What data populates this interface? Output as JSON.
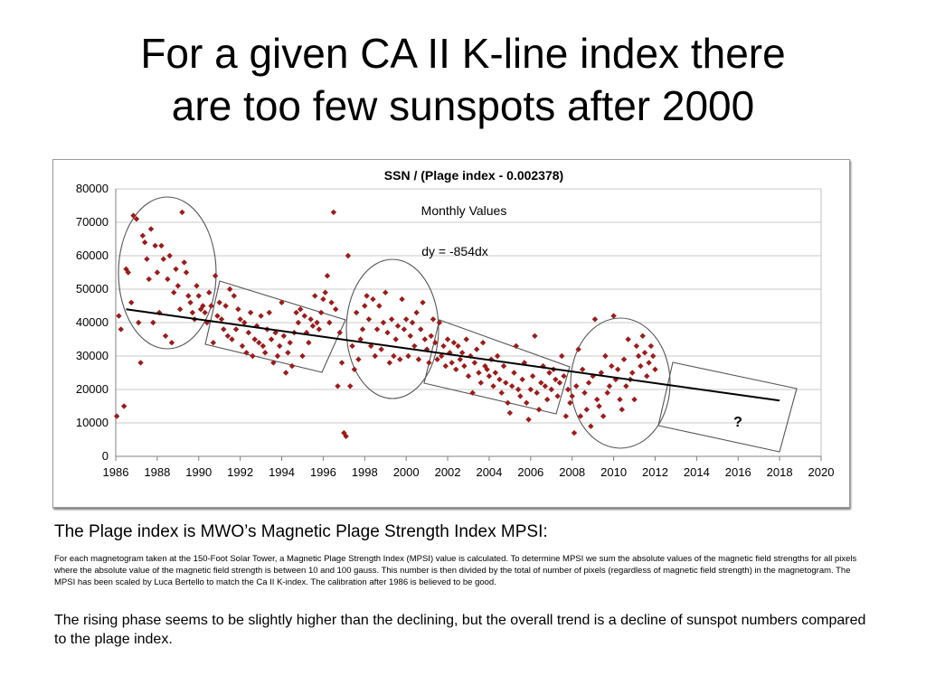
{
  "slide": {
    "title_line1": "For a given CA II K-line index there",
    "title_line2": "are too few sunspots after 2000",
    "caption_head": "The Plage index is MWO’s Magnetic Plage Strength Index MPSI:",
    "caption_small": "For each magnetogram taken at the 150-Foot Solar Tower, a Magnetic Plage Strength Index (MPSI) value is calculated. To determine MPSI we sum the absolute values of the magnetic field strengths for all pixels where the absolute value of the magnetic field strength is between 10 and 100 gauss. This number is then divided by the total of number of pixels (regardless of magnetic field strength) in the magnetogram. The MPSI has been scaled by Luca Bertello to match the Ca II K-index. The calibration after 1986 is believed to be good.",
    "caption_body": "The rising phase seems to be slightly higher than the declining, but the overall trend is a decline of sunspot numbers compared to the plage index."
  },
  "chart_data": {
    "type": "scatter",
    "title": "SSN / (Plage index - 0.002378)",
    "subtitle": "Monthly Values",
    "annotation": "dy = -854dx",
    "question_mark": "?",
    "xlim": [
      1986,
      2020
    ],
    "ylim": [
      0,
      80000
    ],
    "x_ticks": [
      "1986",
      "1988",
      "1990",
      "1992",
      "1994",
      "1996",
      "1998",
      "2000",
      "2002",
      "2004",
      "2006",
      "2008",
      "2010",
      "2012",
      "2014",
      "2016",
      "2018",
      "2020"
    ],
    "y_ticks": [
      "0",
      "10000",
      "20000",
      "30000",
      "40000",
      "50000",
      "60000",
      "70000",
      "80000"
    ],
    "grid": "horizontal",
    "point_color": "#9B1B1B",
    "trend_color": "#000000",
    "trendline": {
      "x": [
        1986.5,
        2018.0
      ],
      "y": [
        44000,
        16700
      ]
    },
    "series": [
      {
        "points": [
          [
            1986.05,
            12000
          ],
          [
            1986.15,
            42000
          ],
          [
            1986.25,
            38000
          ],
          [
            1986.4,
            15000
          ],
          [
            1986.5,
            56000
          ],
          [
            1986.6,
            55000
          ],
          [
            1986.75,
            46000
          ],
          [
            1986.85,
            72000
          ],
          [
            1987.0,
            71000
          ],
          [
            1987.1,
            40000
          ],
          [
            1987.2,
            28000
          ],
          [
            1987.3,
            66000
          ],
          [
            1987.4,
            64000
          ],
          [
            1987.5,
            59000
          ],
          [
            1987.6,
            53000
          ],
          [
            1987.7,
            68000
          ],
          [
            1987.8,
            40000
          ],
          [
            1987.9,
            63000
          ],
          [
            1988.0,
            55000
          ],
          [
            1988.1,
            43000
          ],
          [
            1988.2,
            63000
          ],
          [
            1988.3,
            59000
          ],
          [
            1988.4,
            36000
          ],
          [
            1988.5,
            53000
          ],
          [
            1988.6,
            60000
          ],
          [
            1988.7,
            34000
          ],
          [
            1988.8,
            49000
          ],
          [
            1988.9,
            56000
          ],
          [
            1989.0,
            51000
          ],
          [
            1989.1,
            44000
          ],
          [
            1989.2,
            73000
          ],
          [
            1989.3,
            58000
          ],
          [
            1989.4,
            55000
          ],
          [
            1989.5,
            48000
          ],
          [
            1989.6,
            46000
          ],
          [
            1989.7,
            43000
          ],
          [
            1989.8,
            41000
          ],
          [
            1989.9,
            51000
          ],
          [
            1990.0,
            48000
          ],
          [
            1990.1,
            44000
          ],
          [
            1990.2,
            45000
          ],
          [
            1990.3,
            43000
          ],
          [
            1990.4,
            40000
          ],
          [
            1990.5,
            49000
          ],
          [
            1990.6,
            45000
          ],
          [
            1990.7,
            34000
          ],
          [
            1990.8,
            54000
          ],
          [
            1990.9,
            42000
          ],
          [
            1991.0,
            46000
          ],
          [
            1991.1,
            41000
          ],
          [
            1991.2,
            38000
          ],
          [
            1991.3,
            45000
          ],
          [
            1991.4,
            36000
          ],
          [
            1991.5,
            50000
          ],
          [
            1991.6,
            35000
          ],
          [
            1991.7,
            48000
          ],
          [
            1991.8,
            38000
          ],
          [
            1991.9,
            44000
          ],
          [
            1992.0,
            41000
          ],
          [
            1992.1,
            33000
          ],
          [
            1992.2,
            40000
          ],
          [
            1992.3,
            31000
          ],
          [
            1992.4,
            37000
          ],
          [
            1992.5,
            43000
          ],
          [
            1992.6,
            30000
          ],
          [
            1992.7,
            35000
          ],
          [
            1992.8,
            39000
          ],
          [
            1992.9,
            34000
          ],
          [
            1993.0,
            42000
          ],
          [
            1993.1,
            33000
          ],
          [
            1993.2,
            31000
          ],
          [
            1993.3,
            38000
          ],
          [
            1993.4,
            43000
          ],
          [
            1993.5,
            35000
          ],
          [
            1993.6,
            28000
          ],
          [
            1993.7,
            37000
          ],
          [
            1993.8,
            30000
          ],
          [
            1993.9,
            33000
          ],
          [
            1994.0,
            46000
          ],
          [
            1994.1,
            36000
          ],
          [
            1994.2,
            25000
          ],
          [
            1994.3,
            31000
          ],
          [
            1994.4,
            34000
          ],
          [
            1994.5,
            27000
          ],
          [
            1994.6,
            37000
          ],
          [
            1994.7,
            43000
          ],
          [
            1994.8,
            40000
          ],
          [
            1994.9,
            44000
          ],
          [
            1995.0,
            30000
          ],
          [
            1995.1,
            42000
          ],
          [
            1995.2,
            37000
          ],
          [
            1995.3,
            34000
          ],
          [
            1995.4,
            41000
          ],
          [
            1995.5,
            39000
          ],
          [
            1995.6,
            48000
          ],
          [
            1995.7,
            40000
          ],
          [
            1995.8,
            38000
          ],
          [
            1995.9,
            43000
          ],
          [
            1996.0,
            47000
          ],
          [
            1996.1,
            49000
          ],
          [
            1996.2,
            54000
          ],
          [
            1996.3,
            40000
          ],
          [
            1996.4,
            46000
          ],
          [
            1996.5,
            73000
          ],
          [
            1996.6,
            44000
          ],
          [
            1996.7,
            21000
          ],
          [
            1996.8,
            37000
          ],
          [
            1996.9,
            28000
          ],
          [
            1997.0,
            7000
          ],
          [
            1997.1,
            6000
          ],
          [
            1997.2,
            60000
          ],
          [
            1997.3,
            21000
          ],
          [
            1997.4,
            33000
          ],
          [
            1997.5,
            26000
          ],
          [
            1997.6,
            43000
          ],
          [
            1997.7,
            29000
          ],
          [
            1997.8,
            35000
          ],
          [
            1997.9,
            38000
          ],
          [
            1998.0,
            45000
          ],
          [
            1998.1,
            48000
          ],
          [
            1998.2,
            41000
          ],
          [
            1998.3,
            33000
          ],
          [
            1998.4,
            47000
          ],
          [
            1998.5,
            30000
          ],
          [
            1998.6,
            38000
          ],
          [
            1998.7,
            45000
          ],
          [
            1998.8,
            32000
          ],
          [
            1998.9,
            40000
          ],
          [
            1999.0,
            49000
          ],
          [
            1999.1,
            37000
          ],
          [
            1999.2,
            28000
          ],
          [
            1999.3,
            41000
          ],
          [
            1999.4,
            30000
          ],
          [
            1999.5,
            35000
          ],
          [
            1999.6,
            39000
          ],
          [
            1999.7,
            29000
          ],
          [
            1999.8,
            47000
          ],
          [
            1999.9,
            38000
          ],
          [
            2000.0,
            41000
          ],
          [
            2000.1,
            30000
          ],
          [
            2000.2,
            36000
          ],
          [
            2000.3,
            40000
          ],
          [
            2000.4,
            33000
          ],
          [
            2000.5,
            43000
          ],
          [
            2000.6,
            29000
          ],
          [
            2000.7,
            38000
          ],
          [
            2000.8,
            46000
          ],
          [
            2000.9,
            35000
          ],
          [
            2001.0,
            32000
          ],
          [
            2001.1,
            28000
          ],
          [
            2001.2,
            36000
          ],
          [
            2001.3,
            41000
          ],
          [
            2001.4,
            34000
          ],
          [
            2001.5,
            29000
          ],
          [
            2001.6,
            40000
          ],
          [
            2001.7,
            30000
          ],
          [
            2001.8,
            33000
          ],
          [
            2001.9,
            27000
          ],
          [
            2002.0,
            35000
          ],
          [
            2002.1,
            31000
          ],
          [
            2002.2,
            28000
          ],
          [
            2002.3,
            34000
          ],
          [
            2002.4,
            26000
          ],
          [
            2002.5,
            33000
          ],
          [
            2002.6,
            29000
          ],
          [
            2002.7,
            31000
          ],
          [
            2002.8,
            27000
          ],
          [
            2002.9,
            35000
          ],
          [
            2003.0,
            24000
          ],
          [
            2003.1,
            30000
          ],
          [
            2003.2,
            19000
          ],
          [
            2003.3,
            28000
          ],
          [
            2003.4,
            32000
          ],
          [
            2003.5,
            25000
          ],
          [
            2003.6,
            22000
          ],
          [
            2003.7,
            34000
          ],
          [
            2003.8,
            27000
          ],
          [
            2003.9,
            26000
          ],
          [
            2004.0,
            24000
          ],
          [
            2004.1,
            29000
          ],
          [
            2004.2,
            21000
          ],
          [
            2004.3,
            25000
          ],
          [
            2004.4,
            30000
          ],
          [
            2004.5,
            23000
          ],
          [
            2004.6,
            19000
          ],
          [
            2004.7,
            27000
          ],
          [
            2004.8,
            22000
          ],
          [
            2004.9,
            16000
          ],
          [
            2005.0,
            13000
          ],
          [
            2005.1,
            21000
          ],
          [
            2005.2,
            25000
          ],
          [
            2005.3,
            33000
          ],
          [
            2005.4,
            20000
          ],
          [
            2005.5,
            18000
          ],
          [
            2005.6,
            23000
          ],
          [
            2005.7,
            28000
          ],
          [
            2005.8,
            16000
          ],
          [
            2005.9,
            11000
          ],
          [
            2006.0,
            20000
          ],
          [
            2006.1,
            24000
          ],
          [
            2006.2,
            36000
          ],
          [
            2006.3,
            19000
          ],
          [
            2006.4,
            14000
          ],
          [
            2006.5,
            22000
          ],
          [
            2006.6,
            27000
          ],
          [
            2006.7,
            21000
          ],
          [
            2006.8,
            17000
          ],
          [
            2006.9,
            25000
          ],
          [
            2007.0,
            20000
          ],
          [
            2007.1,
            26000
          ],
          [
            2007.2,
            23000
          ],
          [
            2007.3,
            18000
          ],
          [
            2007.4,
            22000
          ],
          [
            2007.5,
            30000
          ],
          [
            2007.6,
            24000
          ],
          [
            2007.7,
            12000
          ],
          [
            2007.8,
            20000
          ],
          [
            2007.9,
            16000
          ],
          [
            2008.0,
            18000
          ],
          [
            2008.1,
            7000
          ],
          [
            2008.2,
            21000
          ],
          [
            2008.3,
            32000
          ],
          [
            2008.4,
            12000
          ],
          [
            2008.5,
            26000
          ],
          [
            2008.6,
            19000
          ],
          [
            2008.7,
            14000
          ],
          [
            2008.8,
            22000
          ],
          [
            2008.9,
            9000
          ],
          [
            2009.0,
            24000
          ],
          [
            2009.1,
            41000
          ],
          [
            2009.2,
            17000
          ],
          [
            2009.3,
            15000
          ],
          [
            2009.4,
            25000
          ],
          [
            2009.5,
            12000
          ],
          [
            2009.6,
            30000
          ],
          [
            2009.7,
            19000
          ],
          [
            2009.8,
            21000
          ],
          [
            2009.9,
            27000
          ],
          [
            2010.0,
            42000
          ],
          [
            2010.1,
            23000
          ],
          [
            2010.2,
            26000
          ],
          [
            2010.3,
            17000
          ],
          [
            2010.4,
            14000
          ],
          [
            2010.5,
            29000
          ],
          [
            2010.6,
            21000
          ],
          [
            2010.7,
            35000
          ],
          [
            2010.8,
            23000
          ],
          [
            2010.9,
            25000
          ],
          [
            2011.0,
            17000
          ],
          [
            2011.1,
            33000
          ],
          [
            2011.2,
            30000
          ],
          [
            2011.3,
            27000
          ],
          [
            2011.4,
            36000
          ],
          [
            2011.5,
            31000
          ],
          [
            2011.6,
            24000
          ],
          [
            2011.7,
            28000
          ],
          [
            2011.8,
            33000
          ],
          [
            2011.9,
            30000
          ],
          [
            2012.0,
            26000
          ]
        ]
      }
    ]
  }
}
